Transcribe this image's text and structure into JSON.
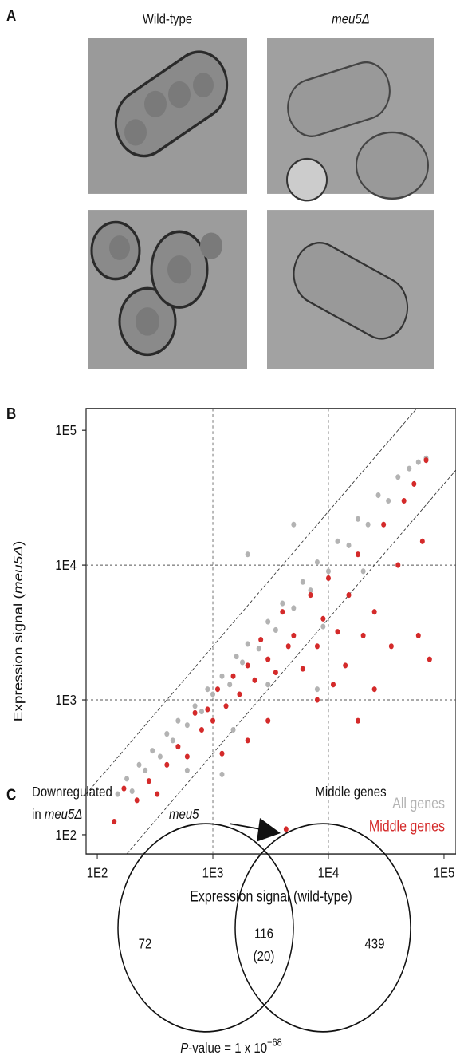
{
  "panels": [
    "A",
    "B",
    "C"
  ],
  "images": {
    "left_label": "Wild-type",
    "right_label": "meu5Δ"
  },
  "chart_data": {
    "type": "scatter",
    "xlabel": "Expression signal (wild-type)",
    "ylabel": {
      "prefix": "Expression signal (",
      "italic": "meu5Δ",
      "suffix": ")"
    },
    "log_scale": true,
    "grid": true,
    "xlim": [
      80,
      127000
    ],
    "ylim": [
      72,
      145000
    ],
    "xticks": [
      {
        "value": 100,
        "label": "1E2"
      },
      {
        "value": 1000,
        "label": "1E3"
      },
      {
        "value": 10000,
        "label": "1E4"
      },
      {
        "value": 100000,
        "label": "1E5"
      }
    ],
    "yticks": [
      {
        "value": 100,
        "label": "1E2"
      },
      {
        "value": 1000,
        "label": "1E3"
      },
      {
        "value": 10000,
        "label": "1E4"
      },
      {
        "value": 100000,
        "label": "1E5"
      }
    ],
    "fold_lines": [
      2.5,
      0.4
    ],
    "legend": "lower right",
    "series": [
      {
        "name": "All genes",
        "color": "#b3b3b3",
        "x": [
          150,
          180,
          200,
          230,
          260,
          300,
          350,
          400,
          450,
          500,
          600,
          700,
          800,
          900,
          1000,
          1200,
          1400,
          1600,
          1800,
          2000,
          2500,
          3000,
          3500,
          4000,
          5000,
          6000,
          7000,
          8000,
          10000,
          12000,
          15000,
          18000,
          22000,
          27000,
          33000,
          40000,
          50000,
          60000,
          70000,
          2000,
          5000,
          600,
          1500,
          3000,
          9000,
          20000,
          8000,
          1200
        ],
        "values": [
          200,
          260,
          210,
          330,
          300,
          420,
          380,
          560,
          500,
          700,
          650,
          900,
          820,
          1200,
          1100,
          1500,
          1300,
          2100,
          1900,
          2600,
          2400,
          3800,
          3300,
          5200,
          4800,
          7500,
          6500,
          10500,
          9000,
          15000,
          14000,
          22000,
          20000,
          33000,
          30000,
          45000,
          52000,
          58000,
          62000,
          12000,
          20000,
          300,
          600,
          1300,
          3500,
          9000,
          1200,
          280
        ]
      },
      {
        "name": "Middle genes",
        "color": "#d42a2a",
        "x": [
          140,
          170,
          220,
          280,
          330,
          400,
          500,
          600,
          700,
          800,
          900,
          1000,
          1100,
          1300,
          1500,
          1700,
          2000,
          2300,
          2600,
          3000,
          3500,
          4000,
          4500,
          5000,
          6000,
          7000,
          8000,
          9000,
          10000,
          12000,
          14000,
          15000,
          18000,
          20000,
          25000,
          30000,
          35000,
          40000,
          45000,
          55000,
          60000,
          70000,
          75000,
          65000,
          3000,
          2000,
          1200,
          8000,
          18000,
          4300,
          11000,
          25000
        ],
        "values": [
          125,
          220,
          180,
          250,
          200,
          330,
          450,
          380,
          800,
          600,
          850,
          700,
          1200,
          900,
          1500,
          1100,
          1800,
          1400,
          2800,
          2000,
          1600,
          4500,
          2500,
          3000,
          1700,
          6000,
          2500,
          4000,
          8000,
          3200,
          1800,
          6000,
          12000,
          3000,
          4500,
          20000,
          2500,
          10000,
          30000,
          40000,
          3000,
          60000,
          2000,
          15000,
          700,
          500,
          400,
          1000,
          700,
          110,
          1300,
          1200
        ]
      }
    ],
    "annotation": "meu5"
  },
  "venn": {
    "left_label": [
      "Downregulated",
      "in "
    ],
    "left_label_italic": "meu5Δ",
    "right_label": "Middle genes",
    "left_only": "72",
    "both": "116",
    "both_sub": "(20)",
    "right_only": "439",
    "pvalue": {
      "italic": "P",
      "text": "-value = 1 x 10",
      "exponent": "−68"
    }
  }
}
